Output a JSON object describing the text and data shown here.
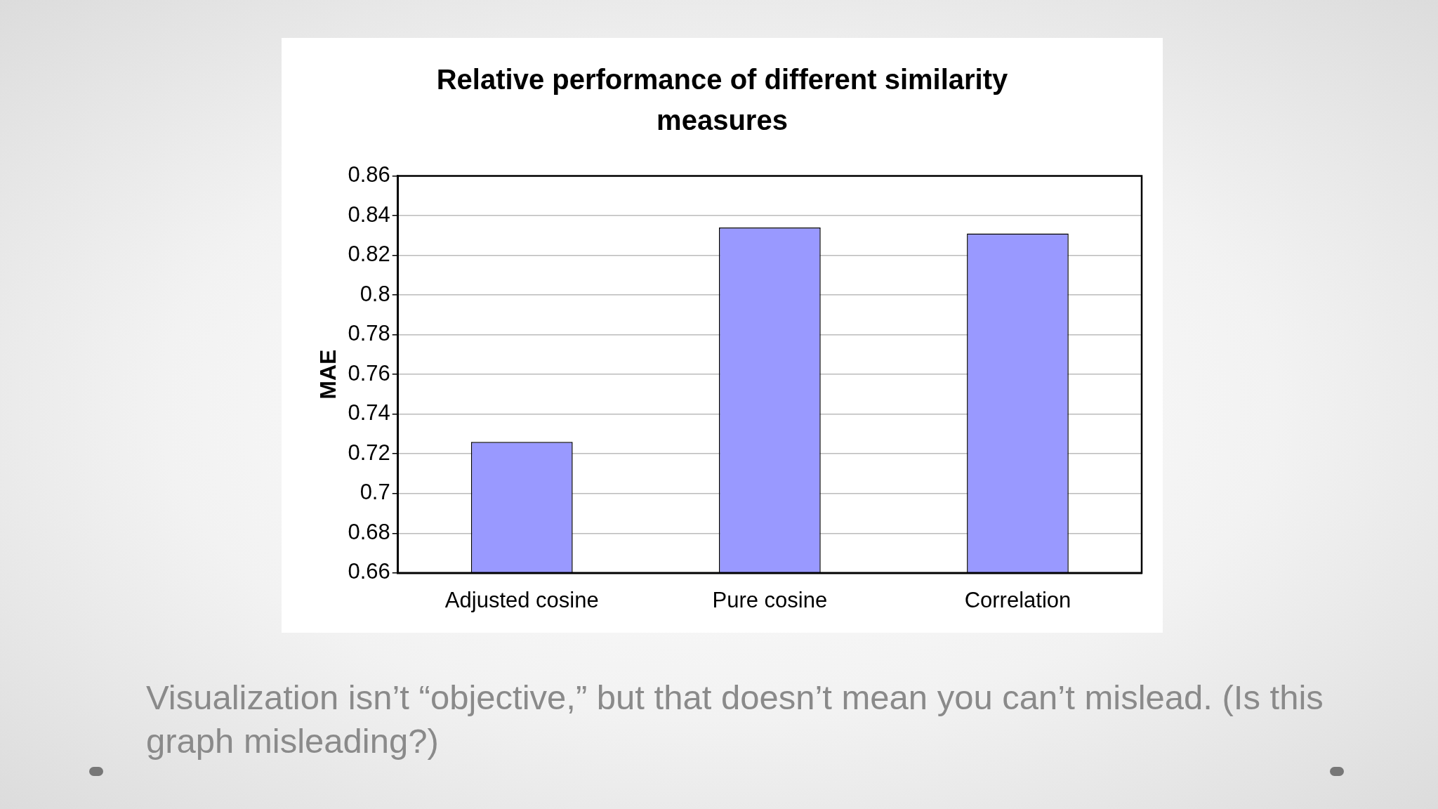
{
  "chart_data": {
    "type": "bar",
    "title": "Relative performance of different similarity measures",
    "ylabel": "MAE",
    "categories": [
      "Adjusted cosine",
      "Pure cosine",
      "Correlation"
    ],
    "values": [
      0.726,
      0.834,
      0.831
    ],
    "color": "#9999ff",
    "ylim": [
      0.66,
      0.86
    ],
    "yticks": [
      0.66,
      0.68,
      0.7,
      0.72,
      0.74,
      0.76,
      0.78,
      0.8,
      0.82,
      0.84,
      0.86
    ],
    "grid": "y",
    "legend": false,
    "annotations": [
      "Visualization isn’t “objective,” but that doesn’t mean you can’t mislead. (Is this graph misleading?)"
    ]
  }
}
